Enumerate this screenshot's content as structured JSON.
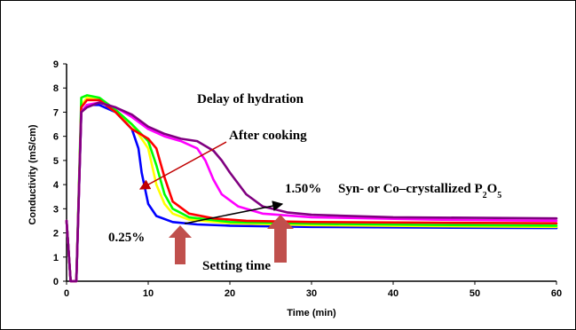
{
  "chart_data": {
    "type": "line",
    "xlabel": "Time (min)",
    "ylabel": "Conductivity (mS/cm)",
    "xlim": [
      0,
      60
    ],
    "ylim": [
      0,
      9
    ],
    "xticks": [
      "0",
      "10",
      "20",
      "30",
      "40",
      "50",
      "60"
    ],
    "yticks": [
      "0",
      "1",
      "2",
      "3",
      "4",
      "5",
      "6",
      "7",
      "8",
      "9"
    ],
    "grid": false,
    "series": [
      {
        "color": "#0000ff",
        "points": [
          [
            0,
            2.5
          ],
          [
            0.5,
            0
          ],
          [
            1.2,
            0
          ],
          [
            1.8,
            7
          ],
          [
            2.5,
            7.3
          ],
          [
            4,
            7.3
          ],
          [
            6,
            7
          ],
          [
            8,
            6.3
          ],
          [
            8.8,
            5.5
          ],
          [
            9.2,
            4.5
          ],
          [
            10,
            3.2
          ],
          [
            11,
            2.7
          ],
          [
            13,
            2.45
          ],
          [
            16,
            2.35
          ],
          [
            20,
            2.3
          ],
          [
            30,
            2.25
          ],
          [
            45,
            2.22
          ],
          [
            60,
            2.2
          ]
        ]
      },
      {
        "color": "#ffff00",
        "points": [
          [
            0,
            2.5
          ],
          [
            0.5,
            0
          ],
          [
            1.2,
            0
          ],
          [
            1.8,
            7.3
          ],
          [
            2.5,
            7.6
          ],
          [
            4,
            7.5
          ],
          [
            6,
            7
          ],
          [
            8,
            6.5
          ],
          [
            10,
            5.5
          ],
          [
            11,
            4
          ],
          [
            12,
            3.2
          ],
          [
            13,
            2.8
          ],
          [
            15,
            2.55
          ],
          [
            20,
            2.4
          ],
          [
            30,
            2.32
          ],
          [
            45,
            2.28
          ],
          [
            60,
            2.25
          ]
        ]
      },
      {
        "color": "#00ff00",
        "points": [
          [
            0,
            2.5
          ],
          [
            0.5,
            0
          ],
          [
            1.2,
            0
          ],
          [
            1.8,
            7.6
          ],
          [
            2.5,
            7.7
          ],
          [
            4,
            7.6
          ],
          [
            6,
            7.1
          ],
          [
            8,
            6.5
          ],
          [
            10,
            5.8
          ],
          [
            11,
            4.8
          ],
          [
            12,
            3.6
          ],
          [
            13,
            3
          ],
          [
            15,
            2.65
          ],
          [
            20,
            2.45
          ],
          [
            30,
            2.38
          ],
          [
            45,
            2.33
          ],
          [
            60,
            2.3
          ]
        ]
      },
      {
        "color": "#ff0000",
        "points": [
          [
            0,
            2.5
          ],
          [
            0.5,
            0
          ],
          [
            1.2,
            0
          ],
          [
            1.8,
            7.2
          ],
          [
            2.5,
            7.5
          ],
          [
            4,
            7.5
          ],
          [
            6,
            7
          ],
          [
            8,
            6.3
          ],
          [
            10,
            5.9
          ],
          [
            11,
            5.5
          ],
          [
            12,
            4.3
          ],
          [
            13,
            3.3
          ],
          [
            15,
            2.8
          ],
          [
            18,
            2.6
          ],
          [
            22,
            2.5
          ],
          [
            30,
            2.45
          ],
          [
            45,
            2.42
          ],
          [
            60,
            2.4
          ]
        ]
      },
      {
        "color": "#ff00ff",
        "points": [
          [
            0,
            2.5
          ],
          [
            0.5,
            0
          ],
          [
            1.2,
            0
          ],
          [
            1.8,
            7
          ],
          [
            2.5,
            7.3
          ],
          [
            4,
            7.4
          ],
          [
            6,
            7.2
          ],
          [
            8,
            6.8
          ],
          [
            10,
            6.3
          ],
          [
            12,
            6
          ],
          [
            14,
            5.8
          ],
          [
            16,
            5.5
          ],
          [
            17,
            5
          ],
          [
            18,
            4.2
          ],
          [
            19,
            3.6
          ],
          [
            21,
            3.1
          ],
          [
            24,
            2.8
          ],
          [
            30,
            2.65
          ],
          [
            45,
            2.55
          ],
          [
            60,
            2.5
          ]
        ]
      },
      {
        "color": "#800080",
        "points": [
          [
            0,
            2.5
          ],
          [
            0.5,
            0
          ],
          [
            1.2,
            0
          ],
          [
            1.8,
            7
          ],
          [
            2.5,
            7.2
          ],
          [
            4,
            7.4
          ],
          [
            6,
            7.2
          ],
          [
            8,
            6.9
          ],
          [
            10,
            6.4
          ],
          [
            12,
            6.1
          ],
          [
            14,
            5.9
          ],
          [
            16,
            5.8
          ],
          [
            18,
            5.4
          ],
          [
            19,
            5
          ],
          [
            20,
            4.5
          ],
          [
            22,
            3.6
          ],
          [
            24,
            3.1
          ],
          [
            27,
            2.85
          ],
          [
            30,
            2.75
          ],
          [
            40,
            2.65
          ],
          [
            60,
            2.6
          ]
        ]
      }
    ],
    "annotations": [
      {
        "text": "Delay of hydration",
        "x": 16,
        "y": 7.8
      },
      {
        "text": "After cooking",
        "x": 20,
        "y": 6.3
      },
      {
        "text": "1.50%",
        "x": 27,
        "y": 3.9
      },
      {
        "text": "0.25%",
        "x": 5,
        "y": 1.8
      },
      {
        "text": "Setting time",
        "x": 17,
        "y": 0.8
      }
    ],
    "p2o5_label": {
      "prefix": "Syn- or Co–crystallized P",
      "sub": "2",
      "suffix": "O",
      "sub2": "5",
      "x": 33,
      "y": 3.9
    }
  }
}
